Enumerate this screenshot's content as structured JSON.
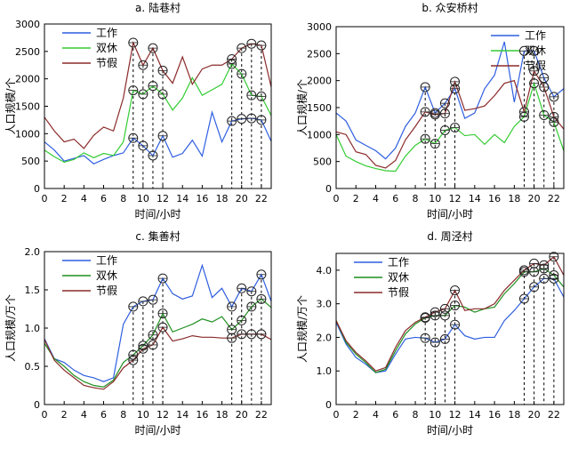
{
  "chart_data": [
    {
      "type": "line",
      "title": "a. 陆巷村",
      "xlabel": "时间/小时",
      "ylabel": "人口规模/个",
      "xlim": [
        0,
        23
      ],
      "ylim": [
        0,
        3000
      ],
      "xticks": [
        0,
        2,
        4,
        6,
        8,
        10,
        12,
        14,
        16,
        18,
        20,
        22
      ],
      "yticks": [
        0,
        500,
        1000,
        1500,
        2000,
        2500,
        3000
      ],
      "ytick_labels": [
        "0",
        "500",
        "1000",
        "1500",
        "2000",
        "2500",
        "3000"
      ],
      "marked_hours": [
        9,
        10,
        11,
        12,
        19,
        20,
        21,
        22
      ],
      "legend_position": "top-left",
      "x": [
        0,
        1,
        2,
        3,
        4,
        5,
        6,
        7,
        8,
        9,
        10,
        11,
        12,
        13,
        14,
        15,
        16,
        17,
        18,
        19,
        20,
        21,
        22,
        23
      ],
      "series": [
        {
          "name": "工作",
          "color": "#2f5fe0",
          "values": [
            850,
            700,
            500,
            550,
            600,
            450,
            530,
            600,
            650,
            920,
            780,
            600,
            960,
            570,
            640,
            880,
            590,
            1390,
            850,
            1230,
            1270,
            1280,
            1250,
            860
          ]
        },
        {
          "name": "双休",
          "color": "#33cc33",
          "values": [
            700,
            580,
            480,
            530,
            650,
            560,
            640,
            600,
            850,
            1790,
            1720,
            1870,
            1720,
            1430,
            1650,
            2020,
            1700,
            1800,
            1900,
            2270,
            2090,
            1700,
            1680,
            1330
          ]
        },
        {
          "name": "节假",
          "color": "#8b2a2a",
          "values": [
            1300,
            1050,
            850,
            900,
            730,
            970,
            1120,
            1050,
            1650,
            2660,
            2250,
            2560,
            2150,
            1920,
            2400,
            1900,
            2180,
            2250,
            2250,
            2360,
            2560,
            2640,
            2610,
            1850
          ]
        }
      ]
    },
    {
      "type": "line",
      "title": "b. 众安桥村",
      "xlabel": "时间/小时",
      "ylabel": "人口规模/个",
      "xlim": [
        0,
        23
      ],
      "ylim": [
        0,
        3000
      ],
      "xticks": [
        0,
        2,
        4,
        6,
        8,
        10,
        12,
        14,
        16,
        18,
        20,
        22
      ],
      "yticks": [
        0,
        500,
        1000,
        1500,
        2000,
        2500,
        3000
      ],
      "ytick_labels": [
        "0",
        "500",
        "1000",
        "1500",
        "2000",
        "2500",
        "3000"
      ],
      "marked_hours": [
        9,
        10,
        11,
        12,
        19,
        20,
        21,
        22
      ],
      "legend_position": "top-right",
      "x": [
        0,
        1,
        2,
        3,
        4,
        5,
        6,
        7,
        8,
        9,
        10,
        11,
        12,
        13,
        14,
        15,
        16,
        17,
        18,
        19,
        20,
        21,
        22,
        23
      ],
      "series": [
        {
          "name": "工作",
          "color": "#2f5fe0",
          "values": [
            1400,
            1250,
            900,
            800,
            700,
            550,
            750,
            1150,
            1400,
            1880,
            1400,
            1580,
            1850,
            1300,
            1400,
            1850,
            2100,
            2720,
            1600,
            2550,
            2550,
            2050,
            1700,
            1850
          ]
        },
        {
          "name": "双休",
          "color": "#33cc33",
          "values": [
            1000,
            600,
            500,
            420,
            370,
            330,
            320,
            600,
            800,
            920,
            830,
            1080,
            1130,
            980,
            1000,
            820,
            1000,
            850,
            1150,
            1330,
            1950,
            1360,
            1230,
            700
          ]
        },
        {
          "name": "节假",
          "color": "#8b2a2a",
          "values": [
            1050,
            1000,
            680,
            630,
            430,
            380,
            520,
            900,
            1150,
            1420,
            1370,
            1390,
            1980,
            1450,
            1480,
            1530,
            1720,
            1950,
            2000,
            1420,
            2180,
            1880,
            1330,
            1100
          ]
        }
      ]
    },
    {
      "type": "line",
      "title": "c. 集善村",
      "xlabel": "时间/小时",
      "ylabel": "人口规模/万个",
      "xlim": [
        0,
        23
      ],
      "ylim": [
        0,
        2.0
      ],
      "xticks": [
        0,
        2,
        4,
        6,
        8,
        10,
        12,
        14,
        16,
        18,
        20,
        22
      ],
      "yticks": [
        0,
        0.5,
        1.0,
        1.5,
        2.0
      ],
      "ytick_labels": [
        "0",
        "0.5",
        "1.0",
        "1.5",
        "2.0"
      ],
      "marked_hours": [
        9,
        10,
        11,
        12,
        19,
        20,
        21,
        22
      ],
      "legend_position": "top-left",
      "x": [
        0,
        1,
        2,
        3,
        4,
        5,
        6,
        7,
        8,
        9,
        10,
        11,
        12,
        13,
        14,
        15,
        16,
        17,
        18,
        19,
        20,
        21,
        22,
        23
      ],
      "series": [
        {
          "name": "工作",
          "color": "#2f5fe0",
          "values": [
            0.86,
            0.6,
            0.55,
            0.45,
            0.38,
            0.35,
            0.3,
            0.35,
            1.05,
            1.28,
            1.35,
            1.37,
            1.65,
            1.45,
            1.38,
            1.42,
            1.82,
            1.4,
            1.52,
            1.28,
            1.52,
            1.48,
            1.7,
            1.35
          ]
        },
        {
          "name": "双休",
          "color": "#1f8f1f",
          "values": [
            0.8,
            0.6,
            0.5,
            0.38,
            0.3,
            0.25,
            0.23,
            0.32,
            0.55,
            0.65,
            0.77,
            0.91,
            1.19,
            0.95,
            1.0,
            1.05,
            1.12,
            1.08,
            1.15,
            0.98,
            1.1,
            1.28,
            1.38,
            1.27
          ]
        },
        {
          "name": "节假",
          "color": "#8b2a2a",
          "values": [
            0.85,
            0.58,
            0.45,
            0.35,
            0.25,
            0.22,
            0.2,
            0.3,
            0.48,
            0.58,
            0.73,
            0.78,
            1.01,
            0.83,
            0.86,
            0.9,
            0.88,
            0.88,
            0.87,
            0.87,
            0.92,
            0.92,
            0.92,
            0.85
          ]
        }
      ]
    },
    {
      "type": "line",
      "title": "d. 周泾村",
      "xlabel": "时间/小时",
      "ylabel": "人口规模/万个",
      "xlim": [
        0,
        23
      ],
      "ylim": [
        0,
        4.5
      ],
      "xticks": [
        0,
        2,
        4,
        6,
        8,
        10,
        12,
        14,
        16,
        18,
        20,
        22
      ],
      "yticks": [
        0,
        1.0,
        2.0,
        3.0,
        4.0
      ],
      "ytick_labels": [
        "0",
        "1.0",
        "2.0",
        "3.0",
        "4.0"
      ],
      "marked_hours": [
        9,
        10,
        11,
        12,
        19,
        20,
        21,
        22
      ],
      "legend_position": "top-left",
      "x": [
        0,
        1,
        2,
        3,
        4,
        5,
        6,
        7,
        8,
        9,
        10,
        11,
        12,
        13,
        14,
        15,
        16,
        17,
        18,
        19,
        20,
        21,
        22,
        23
      ],
      "series": [
        {
          "name": "工作",
          "color": "#2f5fe0",
          "values": [
            2.45,
            1.8,
            1.4,
            1.2,
            0.95,
            1.0,
            1.5,
            1.95,
            2.0,
            1.98,
            1.85,
            1.95,
            2.38,
            2.05,
            1.95,
            2.0,
            2.0,
            2.5,
            2.8,
            3.15,
            3.5,
            3.75,
            3.75,
            3.2
          ]
        },
        {
          "name": "双休",
          "color": "#1f8f1f",
          "values": [
            2.5,
            1.85,
            1.5,
            1.25,
            0.95,
            1.05,
            1.6,
            2.1,
            2.4,
            2.58,
            2.65,
            2.65,
            2.95,
            2.9,
            2.75,
            2.85,
            2.9,
            3.3,
            3.6,
            3.95,
            3.95,
            4.05,
            3.85,
            3.5
          ]
        },
        {
          "name": "节假",
          "color": "#8b2a2a",
          "values": [
            2.5,
            1.9,
            1.55,
            1.3,
            1.0,
            1.1,
            1.7,
            2.2,
            2.45,
            2.6,
            2.75,
            2.85,
            3.4,
            2.8,
            2.85,
            2.85,
            3.0,
            3.4,
            3.7,
            4.0,
            4.2,
            4.15,
            4.4,
            3.85
          ]
        }
      ]
    }
  ]
}
